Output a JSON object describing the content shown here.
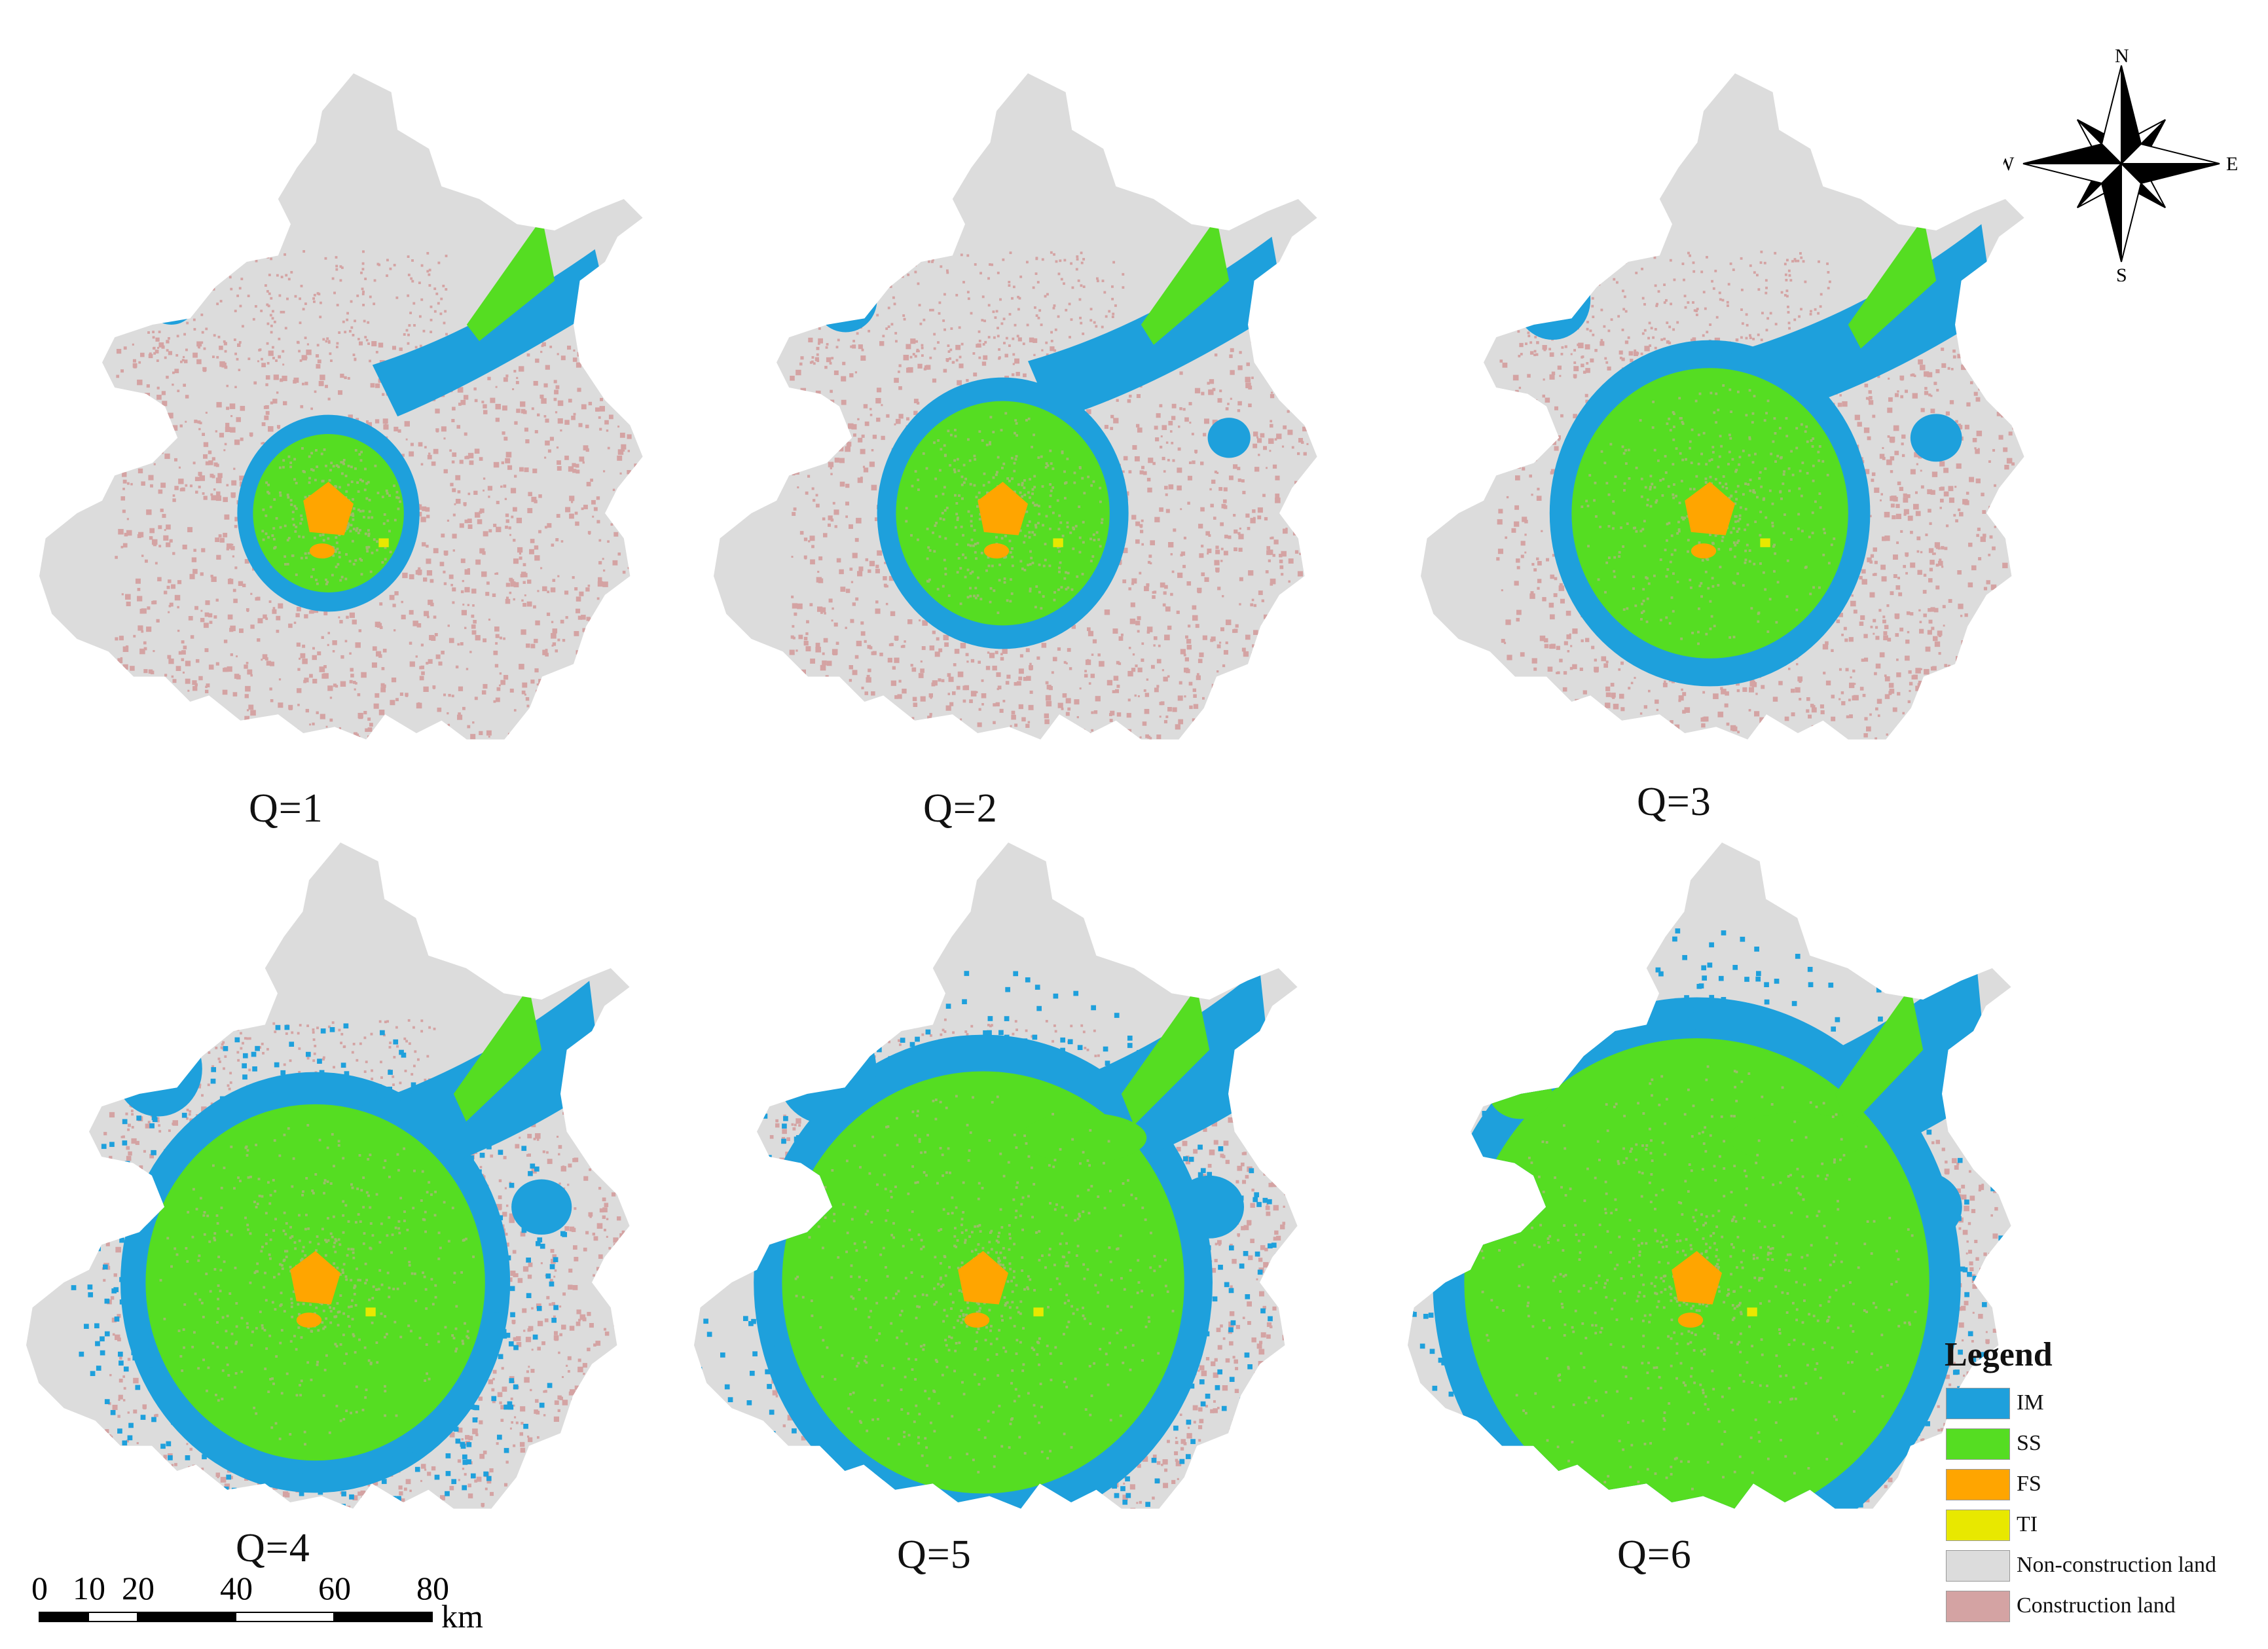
{
  "colors": {
    "IM": "#1ea0dc",
    "SS": "#55dd22",
    "FS": "#ffa500",
    "TI": "#e8e800",
    "non_construction": "#dcdcdc",
    "construction": "#d4a3a3"
  },
  "panels": [
    {
      "label": "Q=1",
      "level": 1
    },
    {
      "label": "Q=2",
      "level": 2
    },
    {
      "label": "Q=3",
      "level": 3
    },
    {
      "label": "Q=4",
      "level": 4
    },
    {
      "label": "Q=5",
      "level": 5
    },
    {
      "label": "Q=6",
      "level": 6
    }
  ],
  "legend": {
    "title": "Legend",
    "items": [
      {
        "key": "IM",
        "label": "IM"
      },
      {
        "key": "SS",
        "label": "SS"
      },
      {
        "key": "FS",
        "label": "FS"
      },
      {
        "key": "TI",
        "label": "TI"
      },
      {
        "key": "non_construction",
        "label": "Non-construction land"
      },
      {
        "key": "construction",
        "label": "Construction land"
      }
    ]
  },
  "compass": {
    "n": "N",
    "s": "S",
    "e": "E",
    "w": "W"
  },
  "scale": {
    "ticks": [
      "0",
      "10",
      "20",
      "40",
      "60",
      "80"
    ],
    "unit": "km"
  }
}
